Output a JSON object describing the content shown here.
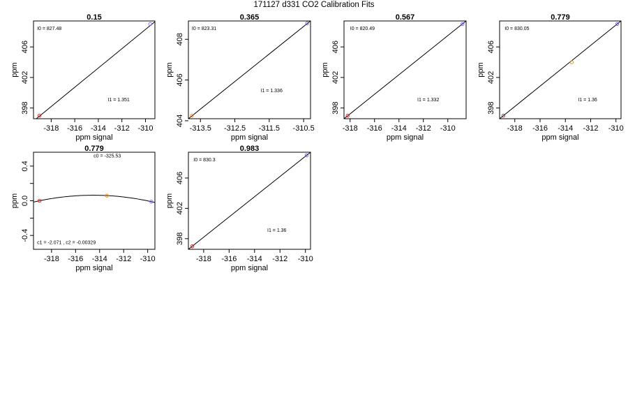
{
  "page_title": "171127   d331   CO2 Calibration Fits",
  "chart_data": [
    {
      "type": "line",
      "title": "0.15",
      "xlabel": "ppm signal",
      "ylabel": "ppm",
      "xlim": [
        -319.5,
        -309.2
      ],
      "ylim": [
        396.6,
        409.4
      ],
      "xticks": [
        -318,
        -316,
        -314,
        -312,
        -310
      ],
      "yticks": [
        398,
        402,
        406
      ],
      "line": {
        "x": [
          -319.5,
          -309.2
        ],
        "y": [
          396.3,
          409.3
        ]
      },
      "points": [
        {
          "x": -319.0,
          "y": 397.0,
          "color": "#d62728"
        },
        {
          "x": -309.6,
          "y": 409.0,
          "color": "#7b68ee"
        }
      ],
      "annotations": [
        {
          "text": "I0 =  827.48",
          "x": -319.2,
          "y": 408.2
        },
        {
          "text": "I1 =  1.351",
          "x": -313.2,
          "y": 398.9
        }
      ]
    },
    {
      "type": "line",
      "title": "0.365",
      "xlabel": "ppm signal",
      "ylabel": "ppm",
      "xlim": [
        -313.85,
        -310.3
      ],
      "ylim": [
        404.1,
        408.9
      ],
      "xticks": [
        -313.5,
        -312.5,
        -311.5,
        -310.5
      ],
      "xtick_labels": [
        "-313.5",
        "-312.5",
        "-311.5",
        "-310.5"
      ],
      "yticks": [
        404,
        406,
        408
      ],
      "line": {
        "x": [
          -313.85,
          -310.3
        ],
        "y": [
          404.1,
          408.9
        ]
      },
      "points": [
        {
          "x": -313.75,
          "y": 404.25,
          "color": "#ff8c00"
        },
        {
          "x": -310.4,
          "y": 408.78,
          "color": "#7b68ee"
        }
      ],
      "annotations": [
        {
          "text": "I0 =  823.31",
          "x": -313.75,
          "y": 408.45
        },
        {
          "text": "I1 =  1.336",
          "x": -311.75,
          "y": 405.4
        }
      ]
    },
    {
      "type": "line",
      "title": "0.567",
      "xlabel": "ppm signal",
      "ylabel": "ppm",
      "xlim": [
        -318.5,
        -308.5
      ],
      "ylim": [
        396.6,
        409.4
      ],
      "xticks": [
        -318,
        -316,
        -314,
        -312,
        -310
      ],
      "yticks": [
        398,
        402,
        406
      ],
      "line": {
        "x": [
          -318.5,
          -308.5
        ],
        "y": [
          396.6,
          409.4
        ]
      },
      "points": [
        {
          "x": -318.2,
          "y": 397.0,
          "color": "#d62728"
        },
        {
          "x": -308.8,
          "y": 409.0,
          "color": "#7b68ee"
        }
      ],
      "annotations": [
        {
          "text": "I0 =  820.49",
          "x": -318.0,
          "y": 408.2
        },
        {
          "text": "I1 =  1.332",
          "x": -312.5,
          "y": 398.9
        }
      ]
    },
    {
      "type": "line",
      "title": "0.779",
      "xlabel": "ppm signal",
      "ylabel": "ppm",
      "xlim": [
        -319.2,
        -309.6
      ],
      "ylim": [
        396.6,
        409.4
      ],
      "xticks": [
        -318,
        -316,
        -314,
        -312,
        -310
      ],
      "yticks": [
        398,
        402,
        406
      ],
      "line": {
        "x": [
          -319.2,
          -309.6
        ],
        "y": [
          396.6,
          409.4
        ]
      },
      "points": [
        {
          "x": -318.9,
          "y": 397.0,
          "color": "#d62728"
        },
        {
          "x": -313.5,
          "y": 404.0,
          "color": "#ff8c00"
        },
        {
          "x": -309.9,
          "y": 409.0,
          "color": "#7b68ee"
        }
      ],
      "annotations": [
        {
          "text": "I0 =  830.05",
          "x": -318.8,
          "y": 408.2
        },
        {
          "text": "I1 =  1.36",
          "x": -313.0,
          "y": 398.9
        }
      ]
    },
    {
      "type": "line",
      "title": "0.779",
      "xlabel": "ppm signal",
      "ylabel": "ppm",
      "xlim": [
        -319.5,
        -309.4
      ],
      "ylim": [
        -0.56,
        0.56
      ],
      "xticks": [
        -318,
        -316,
        -314,
        -312,
        -310
      ],
      "yticks": [
        -0.4,
        0.0,
        0.4
      ],
      "yticks_minor": [
        -0.2,
        0.2
      ],
      "curve": {
        "c0": -325.53,
        "c1": -2.071,
        "c2": -0.00329
      },
      "points": [
        {
          "x": -319.0,
          "y": 0.0,
          "color": "#d62728"
        },
        {
          "x": -313.4,
          "y": 0.06,
          "color": "#ff8c00"
        },
        {
          "x": -309.7,
          "y": -0.01,
          "color": "#7b68ee"
        }
      ],
      "annotations": [
        {
          "text": "c0 =  -325.53",
          "x": -314.5,
          "y": 0.5
        },
        {
          "text": "c1 =  -2.071  ,  c2 =  -0.00329",
          "x": -319.2,
          "y": -0.5
        }
      ]
    },
    {
      "type": "line",
      "title": "0.983",
      "xlabel": "ppm signal",
      "ylabel": "ppm",
      "xlim": [
        -319.2,
        -309.6
      ],
      "ylim": [
        396.6,
        409.4
      ],
      "xticks": [
        -318,
        -316,
        -314,
        -312,
        -310
      ],
      "yticks": [
        398,
        402,
        406
      ],
      "line": {
        "x": [
          -319.2,
          -309.6
        ],
        "y": [
          396.6,
          409.4
        ]
      },
      "points": [
        {
          "x": -318.9,
          "y": 397.0,
          "color": "#d62728"
        },
        {
          "x": -309.9,
          "y": 409.0,
          "color": "#7b68ee"
        }
      ],
      "annotations": [
        {
          "text": "I0 =  830.3",
          "x": -318.8,
          "y": 408.2
        },
        {
          "text": "I1 =  1.36",
          "x": -313.0,
          "y": 398.9
        }
      ]
    }
  ]
}
